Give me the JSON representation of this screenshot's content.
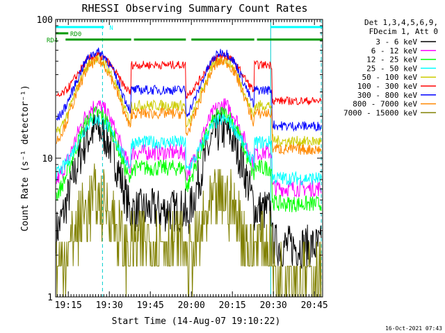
{
  "colors": {
    "background": "#ffffff",
    "axes": "#000000",
    "cyan": "#00ffff",
    "green": "#009900",
    "dashed_line": "#00cccc"
  },
  "chart_data": {
    "type": "line",
    "title": "RHESSI Observing Summary Count Rates",
    "xlabel": "Start Time (14-Aug-07 19:10:22)",
    "ylabel": "Count Rate (s⁻¹ detector⁻¹)",
    "y_scale": "log",
    "ylim": [
      1,
      100
    ],
    "xlim": [
      "19:10:22",
      "20:48:00"
    ],
    "x_ticks": [
      "19:15",
      "19:30",
      "19:45",
      "20:00",
      "20:15",
      "20:30",
      "20:45"
    ],
    "y_ticks": [
      "1",
      "10",
      "100"
    ],
    "footer": "16-Oct-2021 07:43",
    "legend_header": [
      "Det 1,3,4,5,6,9,",
      "FDecim 1, Att 0"
    ],
    "flags": [
      {
        "label": "N",
        "color": "#00ffff",
        "intervals": [
          [
            "19:10:22",
            "19:28:00"
          ],
          [
            "20:29:00",
            "20:48:00"
          ]
        ]
      },
      {
        "label": "RD0",
        "color": "#009900",
        "intervals": [
          [
            "19:10:22",
            "19:15:00"
          ]
        ]
      },
      {
        "label": "RD4",
        "color": "#009900",
        "intervals": [
          [
            "19:14:00",
            "19:38:00"
          ],
          [
            "19:39:00",
            "19:58:00"
          ],
          [
            "20:00:00",
            "20:23:00"
          ],
          [
            "20:24:00",
            "20:48:00"
          ]
        ]
      }
    ],
    "vertical_lines": [
      {
        "time": "19:27:30",
        "style": "dashed"
      },
      {
        "time": "20:29:00",
        "style": "solid"
      },
      {
        "time": "20:47:30",
        "style": "dashed"
      }
    ],
    "series": [
      {
        "name": "3 - 6 keV",
        "color": "#000000",
        "plateau": 4.2,
        "peak": 16,
        "noise": 0.16
      },
      {
        "name": "6 - 12 keV",
        "color": "#ff00ff",
        "plateau": 11,
        "peak": 24,
        "noise": 0.06
      },
      {
        "name": "12 - 25 keV",
        "color": "#00ff00",
        "plateau": 8.5,
        "peak": 21,
        "noise": 0.06
      },
      {
        "name": "25 - 50 keV",
        "color": "#00ffff",
        "plateau": 13,
        "peak": 19,
        "noise": 0.05
      },
      {
        "name": "50 - 100 keV",
        "color": "#cccc00",
        "plateau": 24,
        "peak": 52,
        "noise": 0.04
      },
      {
        "name": "100 - 300 keV",
        "color": "#ff0000",
        "plateau": 47,
        "peak": 55,
        "noise": 0.03
      },
      {
        "name": "300 - 800 keV",
        "color": "#0000ff",
        "plateau": 31,
        "peak": 58,
        "noise": 0.035
      },
      {
        "name": "800 - 7000 keV",
        "color": "#ff8800",
        "plateau": 21,
        "peak": 50,
        "noise": 0.04
      },
      {
        "name": "7000 - 15000 keV",
        "color": "#808000",
        "plateau": 2.5,
        "peak": 5,
        "noise": 0.25
      }
    ]
  }
}
